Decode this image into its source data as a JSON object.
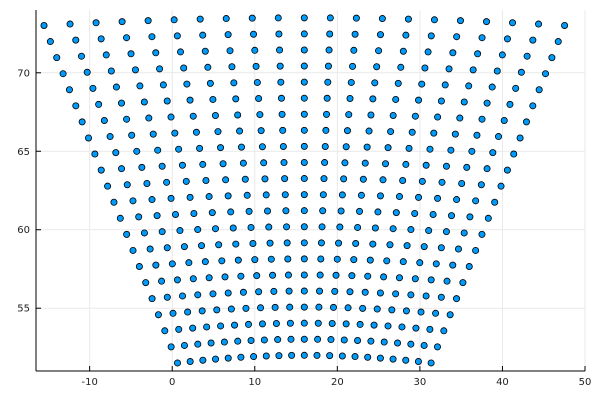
{
  "chart_data": {
    "type": "scatter",
    "title": "",
    "xlabel": "",
    "ylabel": "",
    "xlim": [
      -16.5,
      50.0
    ],
    "ylim": [
      51.0,
      74.0
    ],
    "xticks": [
      -10,
      0,
      10,
      20,
      30,
      40,
      50
    ],
    "yticks": [
      55,
      60,
      65,
      70
    ],
    "xtick_labels": [
      "-10",
      "0",
      "10",
      "20",
      "30",
      "40",
      "50"
    ],
    "ytick_labels": [
      "55",
      "60",
      "65",
      "70"
    ],
    "grid": true,
    "legend": "none",
    "marker_color": "#009AFA",
    "series": [
      {
        "grid_structure": "fan of 21 radial lines, 22 points each",
        "center_lon": 16,
        "lon_half_span_deg": 32,
        "lat_range": [
          52,
          73.5
        ],
        "points_per_line": 22,
        "radial_lines": 21
      }
    ]
  }
}
